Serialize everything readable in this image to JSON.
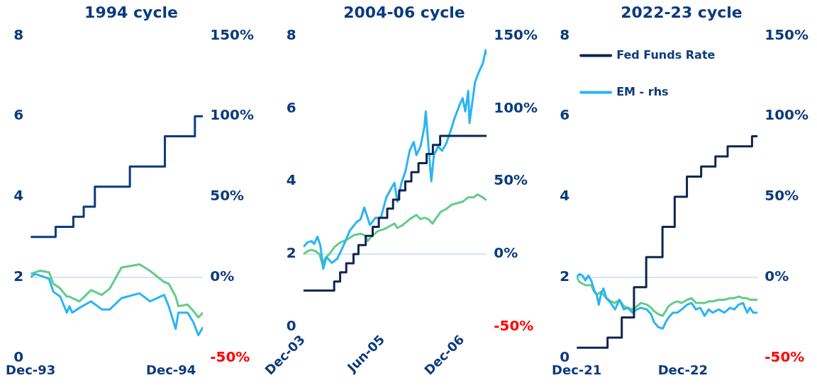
{
  "chart_data": [
    {
      "type": "line",
      "title": "1994 cycle",
      "xlim": [
        "1993-12-01",
        "1995-02-22"
      ],
      "xticks": [
        {
          "value": "1993-12-01",
          "label": "Dec-93"
        },
        {
          "value": "1994-12-01",
          "label": "Dec-94"
        }
      ],
      "ylim": [
        0,
        8
      ],
      "yticks": [
        0,
        2,
        4,
        6,
        8
      ],
      "y2lim": [
        -50,
        150
      ],
      "y2ticks": [
        {
          "value": -50,
          "label": "-50%"
        },
        {
          "value": 0,
          "label": "0%"
        },
        {
          "value": 50,
          "label": "50%"
        },
        {
          "value": 100,
          "label": "100%"
        },
        {
          "value": 150,
          "label": "150%"
        }
      ],
      "ref_lines": [
        {
          "axis": "y2",
          "value": 0,
          "color": "#c6dcf6"
        }
      ],
      "series": [
        {
          "type": "step",
          "color": "#0b3a7e",
          "x": [
            "1993-12-01",
            "1994-02-04",
            "1994-03-22",
            "1994-04-18",
            "1994-05-17",
            "1994-08-16",
            "1994-11-15",
            "1995-02-01",
            "1995-02-22"
          ],
          "values": [
            3.0,
            3.25,
            3.5,
            3.75,
            4.25,
            4.75,
            5.5,
            6.0,
            6.0
          ]
        },
        {
          "type": "line",
          "axis": "y2",
          "color": "#2ab4f5",
          "x": [
            "1993-12-01",
            "1993-12-12",
            "1993-12-26",
            "1994-01-18",
            "1994-01-29",
            "1994-02-16",
            "1994-03-05",
            "1994-03-12",
            "1994-03-19",
            "1994-04-07",
            "1994-05-07",
            "1994-06-04",
            "1994-06-25",
            "1994-07-25",
            "1994-09-10",
            "1994-10-07",
            "1994-11-13",
            "1994-11-25",
            "1994-12-13",
            "1994-12-20",
            "1995-01-13",
            "1995-01-28",
            "1995-02-10",
            "1995-02-22"
          ],
          "values": [
            0,
            2,
            1,
            -1,
            -9,
            -12,
            -22,
            -18,
            -22,
            -19,
            -15,
            -20,
            -20,
            -13,
            -10,
            -15,
            -11,
            -18,
            -32,
            -22,
            -22,
            -28,
            -36,
            -31
          ]
        },
        {
          "type": "line",
          "axis": "y2",
          "color": "#62cc88",
          "x": [
            "1993-12-01",
            "1993-12-12",
            "1993-12-26",
            "1994-01-18",
            "1994-01-29",
            "1994-02-16",
            "1994-03-05",
            "1994-03-12",
            "1994-03-19",
            "1994-04-07",
            "1994-05-07",
            "1994-06-04",
            "1994-06-25",
            "1994-07-25",
            "1994-09-10",
            "1994-10-07",
            "1994-11-13",
            "1994-11-25",
            "1994-12-13",
            "1994-12-20",
            "1995-01-13",
            "1995-01-28",
            "1995-02-10",
            "1995-02-22"
          ],
          "values": [
            2,
            3,
            4,
            3,
            -4,
            -7,
            -12,
            -12,
            -13,
            -15,
            -8,
            -11,
            -7,
            6,
            8,
            4,
            -3,
            -4,
            -12,
            -18,
            -17,
            -21,
            -25,
            -22
          ]
        }
      ]
    },
    {
      "type": "line",
      "title": "2004-06 cycle",
      "xlim": [
        "2003-12-01",
        "2007-05-15"
      ],
      "xticks": [
        {
          "value": "2003-12-01",
          "label": "Dec-03"
        },
        {
          "value": "2005-06-01",
          "label": "Jun-05"
        },
        {
          "value": "2006-12-01",
          "label": "Dec-06"
        }
      ],
      "ylim": [
        0,
        8
      ],
      "yticks": [
        0,
        2,
        4,
        6,
        8
      ],
      "y2lim": [
        -50,
        150
      ],
      "y2ticks": [
        {
          "value": -50,
          "label": "-50%"
        },
        {
          "value": 0,
          "label": "0%"
        },
        {
          "value": 50,
          "label": "50%"
        },
        {
          "value": 100,
          "label": "100%"
        },
        {
          "value": 150,
          "label": "150%"
        }
      ],
      "ref_lines": [
        {
          "axis": "y2",
          "value": 0,
          "color": "#c6dcf6"
        }
      ],
      "series": [
        {
          "type": "step",
          "color": "#0f2650",
          "x": [
            "2003-12-01",
            "2004-06-30",
            "2004-08-10",
            "2004-09-21",
            "2004-11-10",
            "2004-12-14",
            "2005-02-02",
            "2005-03-22",
            "2005-05-03",
            "2005-06-30",
            "2005-08-09",
            "2005-09-20",
            "2005-11-01",
            "2005-12-13",
            "2006-01-31",
            "2006-03-28",
            "2006-05-10",
            "2006-06-29",
            "2007-05-15"
          ],
          "values": [
            1.0,
            1.25,
            1.5,
            1.75,
            2.0,
            2.25,
            2.5,
            2.75,
            3.0,
            3.25,
            3.5,
            3.75,
            4.0,
            4.25,
            4.5,
            4.75,
            5.0,
            5.25,
            5.25
          ]
        },
        {
          "type": "line",
          "axis": "y2",
          "color": "#2ab4f5",
          "x": [
            "2003-12-01",
            "2003-12-29",
            "2004-01-27",
            "2004-02-14",
            "2004-03-07",
            "2004-03-27",
            "2004-04-16",
            "2004-05-08",
            "2004-06-15",
            "2004-07-22",
            "2004-08-29",
            "2004-10-15",
            "2004-12-01",
            "2004-12-29",
            "2005-01-23",
            "2005-02-15",
            "2005-03-03",
            "2005-04-10",
            "2005-05-17",
            "2005-06-24",
            "2005-08-01",
            "2005-08-19",
            "2005-09-08",
            "2005-10-06",
            "2005-11-03",
            "2005-12-01",
            "2005-12-29",
            "2006-01-17",
            "2006-02-14",
            "2006-03-12",
            "2006-03-22",
            "2006-04-10",
            "2006-04-29",
            "2006-05-17",
            "2006-06-15",
            "2006-07-12",
            "2006-08-10",
            "2006-09-07",
            "2006-10-05",
            "2006-11-12",
            "2006-12-01",
            "2006-12-19",
            "2007-01-08",
            "2007-01-17",
            "2007-02-05",
            "2007-02-24",
            "2007-03-22",
            "2007-04-19",
            "2007-05-08",
            "2007-05-13"
          ],
          "values": [
            5,
            8,
            9,
            7,
            12,
            6,
            -10,
            -2,
            -6,
            -3,
            5,
            16,
            22,
            24,
            32,
            25,
            20,
            25,
            25,
            39,
            46,
            49,
            36,
            49,
            57,
            71,
            77,
            68,
            74,
            87,
            98,
            74,
            50,
            68,
            74,
            71,
            76,
            84,
            93,
            103,
            107,
            98,
            112,
            90,
            104,
            118,
            125,
            131,
            140,
            137
          ]
        },
        {
          "type": "line",
          "axis": "y2",
          "color": "#62cc88",
          "x": [
            "2003-12-01",
            "2003-12-29",
            "2004-01-27",
            "2004-02-23",
            "2004-03-21",
            "2004-04-10",
            "2004-04-28",
            "2004-05-27",
            "2004-07-03",
            "2004-08-10",
            "2004-09-27",
            "2004-11-12",
            "2004-12-29",
            "2005-01-27",
            "2005-02-15",
            "2005-03-22",
            "2005-04-29",
            "2005-06-05",
            "2005-07-12",
            "2005-08-19",
            "2005-09-08",
            "2005-10-15",
            "2005-12-01",
            "2006-01-17",
            "2006-02-14",
            "2006-03-12",
            "2006-04-10",
            "2006-05-08",
            "2006-05-27",
            "2006-07-03",
            "2006-08-10",
            "2006-09-17",
            "2006-10-24",
            "2006-12-01",
            "2007-01-08",
            "2007-02-15",
            "2007-03-12",
            "2007-04-19",
            "2007-05-13"
          ],
          "values": [
            0,
            2,
            3,
            2,
            0,
            -7,
            -3,
            0,
            5,
            8,
            10,
            13,
            14,
            13,
            9,
            13,
            16,
            17,
            19,
            21,
            18,
            20,
            24,
            27,
            24,
            25,
            24,
            21,
            24,
            29,
            31,
            34,
            35,
            36,
            39,
            39,
            41,
            39,
            37
          ]
        }
      ]
    },
    {
      "type": "line",
      "title": "2022-23 cycle",
      "legend": "top left",
      "xlim": [
        "2021-12-01",
        "2023-08-15"
      ],
      "xticks": [
        {
          "value": "2021-12-01",
          "label": "Dec-21"
        },
        {
          "value": "2022-12-01",
          "label": "Dec-22"
        }
      ],
      "ylim": [
        0,
        8
      ],
      "yticks": [
        0,
        2,
        4,
        6,
        8
      ],
      "y2lim": [
        -50,
        150
      ],
      "y2ticks": [
        {
          "value": -50,
          "label": "-50%"
        },
        {
          "value": 0,
          "label": "0%"
        },
        {
          "value": 50,
          "label": "50%"
        },
        {
          "value": 100,
          "label": "100%"
        },
        {
          "value": 150,
          "label": "150%"
        }
      ],
      "ref_lines": [
        {
          "axis": "y2",
          "value": 0,
          "color": "#c6dcf6"
        }
      ],
      "series": [
        {
          "type": "step",
          "name": "Fed Funds Rate",
          "color": "#0f2650",
          "x": [
            "2021-12-01",
            "2022-03-17",
            "2022-05-05",
            "2022-06-16",
            "2022-07-28",
            "2022-09-22",
            "2022-11-03",
            "2022-12-15",
            "2023-02-02",
            "2023-03-23",
            "2023-05-04",
            "2023-07-27",
            "2023-08-15"
          ],
          "values": [
            0.25,
            0.5,
            1.0,
            1.75,
            2.5,
            3.25,
            4.0,
            4.5,
            4.75,
            5.0,
            5.25,
            5.5,
            5.5
          ]
        },
        {
          "type": "line",
          "name": "EM - rhs",
          "axis": "y2",
          "color": "#2ab4f5",
          "x": [
            "2021-12-01",
            "2021-12-11",
            "2021-12-21",
            "2021-12-31",
            "2022-01-10",
            "2022-01-20",
            "2022-01-30",
            "2022-02-08",
            "2022-02-15",
            "2022-02-23",
            "2022-03-03",
            "2022-03-13",
            "2022-03-28",
            "2022-04-12",
            "2022-04-27",
            "2022-05-12",
            "2022-05-26",
            "2022-06-11",
            "2022-06-26",
            "2022-07-10",
            "2022-07-30",
            "2022-08-14",
            "2022-08-24",
            "2022-09-08",
            "2022-09-23",
            "2022-10-03",
            "2022-10-13",
            "2022-10-28",
            "2022-11-12",
            "2022-11-27",
            "2022-12-16",
            "2022-12-31",
            "2023-01-15",
            "2023-01-30",
            "2023-02-14",
            "2023-02-28",
            "2023-03-14",
            "2023-04-03",
            "2023-04-23",
            "2023-05-12",
            "2023-05-27",
            "2023-06-11",
            "2023-06-26",
            "2023-07-10",
            "2023-07-20",
            "2023-07-31",
            "2023-08-15"
          ],
          "values": [
            0,
            2,
            1,
            -2,
            1,
            -2,
            -8,
            -11,
            -17,
            -10,
            -7,
            -13,
            -16,
            -20,
            -14,
            -20,
            -19,
            -22,
            -20,
            -19,
            -20,
            -23,
            -28,
            -31,
            -32,
            -28,
            -25,
            -22,
            -22,
            -20,
            -17,
            -16,
            -20,
            -19,
            -24,
            -20,
            -22,
            -20,
            -22,
            -19,
            -20,
            -17,
            -16,
            -22,
            -19,
            -22,
            -22
          ]
        },
        {
          "type": "line",
          "axis": "y2",
          "color": "#62cc88",
          "x": [
            "2021-12-01",
            "2021-12-11",
            "2021-12-21",
            "2021-12-31",
            "2022-01-10",
            "2022-01-20",
            "2022-01-30",
            "2022-02-08",
            "2022-02-15",
            "2022-02-23",
            "2022-03-03",
            "2022-03-13",
            "2022-03-28",
            "2022-04-12",
            "2022-04-27",
            "2022-05-12",
            "2022-05-26",
            "2022-06-11",
            "2022-06-26",
            "2022-07-10",
            "2022-07-30",
            "2022-08-14",
            "2022-08-24",
            "2022-09-08",
            "2022-09-23",
            "2022-10-03",
            "2022-10-13",
            "2022-10-28",
            "2022-11-12",
            "2022-11-27",
            "2022-12-16",
            "2022-12-31",
            "2023-01-15",
            "2023-01-30",
            "2023-02-14",
            "2023-02-28",
            "2023-03-14",
            "2023-04-03",
            "2023-04-23",
            "2023-05-12",
            "2023-05-27",
            "2023-06-11",
            "2023-06-26",
            "2023-07-10",
            "2023-07-20",
            "2023-07-31",
            "2023-08-15"
          ],
          "values": [
            0,
            -3,
            -4,
            -5,
            -5,
            -5,
            -9,
            -11,
            -10,
            -9,
            -11,
            -13,
            -15,
            -16,
            -14,
            -18,
            -19,
            -20,
            -18,
            -16,
            -17,
            -19,
            -21,
            -23,
            -24,
            -21,
            -18,
            -16,
            -15,
            -16,
            -14,
            -13,
            -16,
            -16,
            -16,
            -15,
            -15,
            -14,
            -14,
            -13,
            -13,
            -12,
            -13,
            -13,
            -14,
            -14,
            -14
          ]
        }
      ]
    }
  ]
}
